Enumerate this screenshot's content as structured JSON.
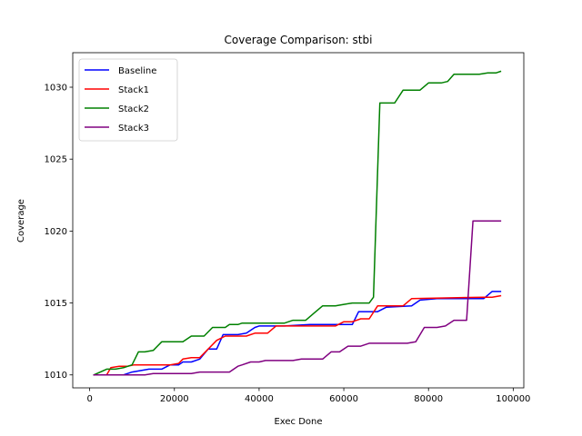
{
  "chart_data": {
    "type": "line",
    "title": "Coverage Comparison: stbi",
    "xlabel": "Exec Done",
    "ylabel": "Coverage",
    "xlim": [
      -4000,
      102500
    ],
    "ylim": [
      1009.1,
      1032.4
    ],
    "xticks": [
      0,
      20000,
      40000,
      60000,
      80000,
      100000
    ],
    "yticks": [
      1010,
      1015,
      1020,
      1025,
      1030
    ],
    "grid": false,
    "legend_position": "top-left",
    "series": [
      {
        "name": "Baseline",
        "color": "#0000ff",
        "points": [
          [
            1000,
            1010
          ],
          [
            8000,
            1010
          ],
          [
            10000,
            1010.2
          ],
          [
            12000,
            1010.3
          ],
          [
            14000,
            1010.4
          ],
          [
            17000,
            1010.4
          ],
          [
            19000,
            1010.7
          ],
          [
            21000,
            1010.7
          ],
          [
            22000,
            1010.9
          ],
          [
            24000,
            1010.9
          ],
          [
            26000,
            1011.1
          ],
          [
            28000,
            1011.8
          ],
          [
            30000,
            1011.8
          ],
          [
            31500,
            1012.8
          ],
          [
            35000,
            1012.8
          ],
          [
            37000,
            1012.9
          ],
          [
            39000,
            1013.3
          ],
          [
            40000,
            1013.4
          ],
          [
            44000,
            1013.4
          ],
          [
            46000,
            1013.4
          ],
          [
            52000,
            1013.5
          ],
          [
            60000,
            1013.5
          ],
          [
            62000,
            1013.5
          ],
          [
            63500,
            1014.4
          ],
          [
            66000,
            1014.4
          ],
          [
            68000,
            1014.4
          ],
          [
            70000,
            1014.7
          ],
          [
            76000,
            1014.8
          ],
          [
            78000,
            1015.2
          ],
          [
            82000,
            1015.3
          ],
          [
            93000,
            1015.3
          ],
          [
            95000,
            1015.8
          ],
          [
            97000,
            1015.8
          ]
        ]
      },
      {
        "name": "Stack1",
        "color": "#ff0000",
        "points": [
          [
            1000,
            1010
          ],
          [
            4000,
            1010
          ],
          [
            5000,
            1010.5
          ],
          [
            7000,
            1010.6
          ],
          [
            9000,
            1010.6
          ],
          [
            10500,
            1010.7
          ],
          [
            19000,
            1010.7
          ],
          [
            21000,
            1010.8
          ],
          [
            22000,
            1011.1
          ],
          [
            24000,
            1011.2
          ],
          [
            26000,
            1011.2
          ],
          [
            28000,
            1011.8
          ],
          [
            30000,
            1012.4
          ],
          [
            32000,
            1012.7
          ],
          [
            34000,
            1012.7
          ],
          [
            37000,
            1012.7
          ],
          [
            39000,
            1012.9
          ],
          [
            40000,
            1012.9
          ],
          [
            42000,
            1012.9
          ],
          [
            44000,
            1013.4
          ],
          [
            58000,
            1013.4
          ],
          [
            60000,
            1013.7
          ],
          [
            62000,
            1013.7
          ],
          [
            64000,
            1013.9
          ],
          [
            66000,
            1013.9
          ],
          [
            68000,
            1014.8
          ],
          [
            74000,
            1014.8
          ],
          [
            76000,
            1015.3
          ],
          [
            93000,
            1015.4
          ],
          [
            95000,
            1015.4
          ],
          [
            97000,
            1015.5
          ]
        ]
      },
      {
        "name": "Stack2",
        "color": "#008000",
        "points": [
          [
            1000,
            1010
          ],
          [
            4000,
            1010.4
          ],
          [
            6000,
            1010.4
          ],
          [
            8000,
            1010.5
          ],
          [
            10000,
            1010.7
          ],
          [
            11500,
            1011.6
          ],
          [
            13000,
            1011.6
          ],
          [
            15000,
            1011.7
          ],
          [
            17000,
            1012.3
          ],
          [
            22000,
            1012.3
          ],
          [
            24000,
            1012.7
          ],
          [
            27000,
            1012.7
          ],
          [
            29000,
            1013.3
          ],
          [
            32000,
            1013.3
          ],
          [
            33000,
            1013.5
          ],
          [
            35000,
            1013.5
          ],
          [
            36000,
            1013.6
          ],
          [
            46000,
            1013.6
          ],
          [
            48000,
            1013.8
          ],
          [
            51000,
            1013.8
          ],
          [
            53000,
            1014.3
          ],
          [
            55000,
            1014.8
          ],
          [
            58000,
            1014.8
          ],
          [
            60000,
            1014.9
          ],
          [
            62000,
            1015.0
          ],
          [
            66000,
            1015.0
          ],
          [
            67000,
            1015.4
          ],
          [
            68500,
            1028.9
          ],
          [
            72000,
            1028.9
          ],
          [
            74000,
            1029.8
          ],
          [
            78000,
            1029.8
          ],
          [
            80000,
            1030.3
          ],
          [
            83000,
            1030.3
          ],
          [
            84500,
            1030.4
          ],
          [
            86000,
            1030.9
          ],
          [
            92000,
            1030.9
          ],
          [
            94000,
            1031.0
          ],
          [
            96000,
            1031.0
          ],
          [
            97000,
            1031.1
          ]
        ]
      },
      {
        "name": "Stack3",
        "color": "#800080",
        "points": [
          [
            1000,
            1010
          ],
          [
            10000,
            1010
          ],
          [
            13000,
            1010
          ],
          [
            15000,
            1010.1
          ],
          [
            24000,
            1010.1
          ],
          [
            26000,
            1010.2
          ],
          [
            33000,
            1010.2
          ],
          [
            35000,
            1010.6
          ],
          [
            36000,
            1010.7
          ],
          [
            38000,
            1010.9
          ],
          [
            40000,
            1010.9
          ],
          [
            41500,
            1011.0
          ],
          [
            48000,
            1011.0
          ],
          [
            50000,
            1011.1
          ],
          [
            55000,
            1011.1
          ],
          [
            57000,
            1011.6
          ],
          [
            59000,
            1011.6
          ],
          [
            61000,
            1012.0
          ],
          [
            64000,
            1012.0
          ],
          [
            66000,
            1012.2
          ],
          [
            75000,
            1012.2
          ],
          [
            77000,
            1012.3
          ],
          [
            79000,
            1013.3
          ],
          [
            82000,
            1013.3
          ],
          [
            84000,
            1013.4
          ],
          [
            86000,
            1013.8
          ],
          [
            89000,
            1013.8
          ],
          [
            90500,
            1020.7
          ],
          [
            96000,
            1020.7
          ],
          [
            97000,
            1020.7
          ]
        ]
      }
    ]
  }
}
